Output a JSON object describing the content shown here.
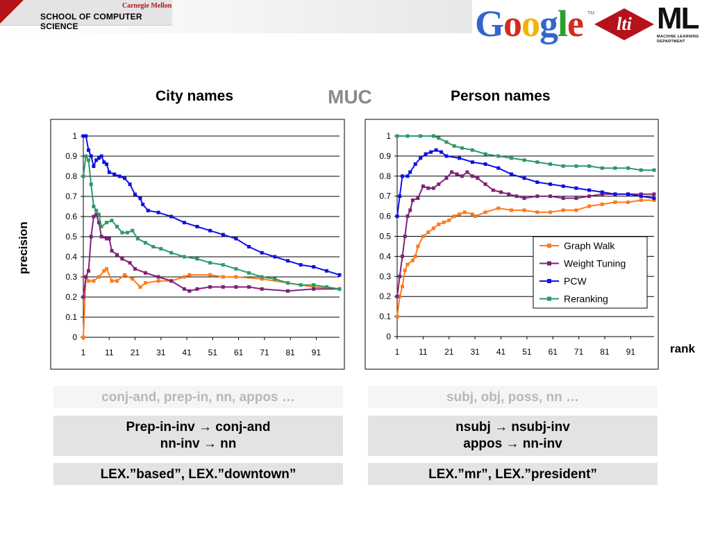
{
  "header": {
    "university": "Carnegie Mellon",
    "school": "SCHOOL OF COMPUTER SCIENCE",
    "google_logo": "Google",
    "google_tm": "TM",
    "lti_logo": "lti",
    "ml_logo": "ML",
    "ml_sub1": "MACHINE LEARNING",
    "ml_sub2": "DEPARTMENT"
  },
  "slide": {
    "center_title": "MUC",
    "y_axis_label": "precision",
    "x_axis_label": "rank"
  },
  "colors": {
    "graph_walk": "#ff7a1a",
    "weight_tuning": "#80207a",
    "pcw": "#1010e8",
    "reranking": "#2e9a68",
    "google_blue": "#3366cc",
    "google_red": "#d52b1e",
    "google_yellow": "#f3b400",
    "google_green": "#2ca02c",
    "cmu_red": "#b5121b"
  },
  "chart_data": [
    {
      "type": "line",
      "title": "City names",
      "xlabel": "rank",
      "ylabel": "precision",
      "xlim": [
        1,
        100
      ],
      "ylim": [
        0,
        1
      ],
      "x_ticks": [
        "1",
        "11",
        "21",
        "31",
        "41",
        "51",
        "61",
        "71",
        "81",
        "91"
      ],
      "y_ticks": [
        "0",
        "0.1",
        "0.2",
        "0.3",
        "0.4",
        "0.5",
        "0.6",
        "0.7",
        "0.8",
        "0.9",
        "1"
      ],
      "grid": true,
      "legend": "none",
      "series": [
        {
          "name": "Graph Walk",
          "points": [
            [
              1,
              0
            ],
            [
              2,
              0.3
            ],
            [
              3,
              0.28
            ],
            [
              5,
              0.28
            ],
            [
              7,
              0.3
            ],
            [
              9,
              0.33
            ],
            [
              10,
              0.34
            ],
            [
              12,
              0.28
            ],
            [
              14,
              0.28
            ],
            [
              17,
              0.31
            ],
            [
              20,
              0.29
            ],
            [
              23,
              0.25
            ],
            [
              25,
              0.27
            ],
            [
              30,
              0.28
            ],
            [
              35,
              0.28
            ],
            [
              40,
              0.3
            ],
            [
              42,
              0.31
            ],
            [
              50,
              0.31
            ],
            [
              55,
              0.3
            ],
            [
              60,
              0.3
            ],
            [
              70,
              0.29
            ],
            [
              80,
              0.27
            ],
            [
              90,
              0.25
            ],
            [
              100,
              0.24
            ]
          ]
        },
        {
          "name": "Weight Tuning",
          "points": [
            [
              1,
              0.2
            ],
            [
              2,
              0.3
            ],
            [
              3,
              0.33
            ],
            [
              4,
              0.5
            ],
            [
              5,
              0.6
            ],
            [
              6,
              0.61
            ],
            [
              7,
              0.57
            ],
            [
              8,
              0.5
            ],
            [
              10,
              0.49
            ],
            [
              11,
              0.49
            ],
            [
              12,
              0.43
            ],
            [
              14,
              0.41
            ],
            [
              16,
              0.39
            ],
            [
              19,
              0.37
            ],
            [
              21,
              0.34
            ],
            [
              25,
              0.32
            ],
            [
              30,
              0.3
            ],
            [
              35,
              0.28
            ],
            [
              40,
              0.24
            ],
            [
              42,
              0.23
            ],
            [
              45,
              0.24
            ],
            [
              50,
              0.25
            ],
            [
              55,
              0.25
            ],
            [
              60,
              0.25
            ],
            [
              65,
              0.25
            ],
            [
              70,
              0.24
            ],
            [
              80,
              0.23
            ],
            [
              90,
              0.24
            ],
            [
              100,
              0.24
            ]
          ]
        },
        {
          "name": "PCW",
          "points": [
            [
              1,
              1
            ],
            [
              2,
              1
            ],
            [
              3,
              0.93
            ],
            [
              4,
              0.9
            ],
            [
              5,
              0.85
            ],
            [
              6,
              0.88
            ],
            [
              7,
              0.89
            ],
            [
              8,
              0.9
            ],
            [
              9,
              0.87
            ],
            [
              10,
              0.86
            ],
            [
              11,
              0.82
            ],
            [
              13,
              0.81
            ],
            [
              15,
              0.8
            ],
            [
              17,
              0.79
            ],
            [
              19,
              0.76
            ],
            [
              21,
              0.71
            ],
            [
              23,
              0.69
            ],
            [
              24,
              0.66
            ],
            [
              26,
              0.63
            ],
            [
              30,
              0.62
            ],
            [
              35,
              0.6
            ],
            [
              40,
              0.57
            ],
            [
              45,
              0.55
            ],
            [
              50,
              0.53
            ],
            [
              55,
              0.51
            ],
            [
              60,
              0.49
            ],
            [
              65,
              0.45
            ],
            [
              70,
              0.42
            ],
            [
              75,
              0.4
            ],
            [
              80,
              0.38
            ],
            [
              85,
              0.36
            ],
            [
              90,
              0.35
            ],
            [
              95,
              0.33
            ],
            [
              100,
              0.31
            ]
          ]
        },
        {
          "name": "Reranking",
          "points": [
            [
              1,
              0.8
            ],
            [
              2,
              0.9
            ],
            [
              3,
              0.88
            ],
            [
              4,
              0.76
            ],
            [
              5,
              0.65
            ],
            [
              6,
              0.63
            ],
            [
              7,
              0.61
            ],
            [
              8,
              0.55
            ],
            [
              10,
              0.57
            ],
            [
              12,
              0.58
            ],
            [
              14,
              0.55
            ],
            [
              16,
              0.52
            ],
            [
              18,
              0.52
            ],
            [
              20,
              0.53
            ],
            [
              22,
              0.49
            ],
            [
              25,
              0.47
            ],
            [
              28,
              0.45
            ],
            [
              31,
              0.44
            ],
            [
              35,
              0.42
            ],
            [
              40,
              0.4
            ],
            [
              45,
              0.39
            ],
            [
              50,
              0.37
            ],
            [
              55,
              0.36
            ],
            [
              60,
              0.34
            ],
            [
              65,
              0.32
            ],
            [
              70,
              0.3
            ],
            [
              75,
              0.29
            ],
            [
              80,
              0.27
            ],
            [
              85,
              0.26
            ],
            [
              90,
              0.26
            ],
            [
              95,
              0.25
            ],
            [
              100,
              0.24
            ]
          ]
        }
      ]
    },
    {
      "type": "line",
      "title": "Person names",
      "xlabel": "rank",
      "ylabel": "precision",
      "xlim": [
        1,
        100
      ],
      "ylim": [
        0,
        1
      ],
      "x_ticks": [
        "1",
        "11",
        "21",
        "31",
        "41",
        "51",
        "61",
        "71",
        "81",
        "91"
      ],
      "y_ticks": [
        "0",
        "0.1",
        "0.2",
        "0.3",
        "0.4",
        "0.5",
        "0.6",
        "0.7",
        "0.8",
        "0.9",
        "1"
      ],
      "grid": true,
      "legend": "right",
      "series": [
        {
          "name": "Graph Walk",
          "points": [
            [
              1,
              0.1
            ],
            [
              2,
              0.2
            ],
            [
              3,
              0.25
            ],
            [
              4,
              0.33
            ],
            [
              5,
              0.36
            ],
            [
              7,
              0.38
            ],
            [
              8,
              0.4
            ],
            [
              9,
              0.45
            ],
            [
              11,
              0.5
            ],
            [
              13,
              0.52
            ],
            [
              15,
              0.54
            ],
            [
              17,
              0.56
            ],
            [
              19,
              0.57
            ],
            [
              21,
              0.58
            ],
            [
              23,
              0.6
            ],
            [
              25,
              0.61
            ],
            [
              27,
              0.62
            ],
            [
              30,
              0.61
            ],
            [
              31,
              0.6
            ],
            [
              35,
              0.62
            ],
            [
              40,
              0.64
            ],
            [
              45,
              0.63
            ],
            [
              50,
              0.63
            ],
            [
              55,
              0.62
            ],
            [
              60,
              0.62
            ],
            [
              65,
              0.63
            ],
            [
              70,
              0.63
            ],
            [
              75,
              0.65
            ],
            [
              80,
              0.66
            ],
            [
              85,
              0.67
            ],
            [
              90,
              0.67
            ],
            [
              95,
              0.68
            ],
            [
              100,
              0.68
            ]
          ]
        },
        {
          "name": "Weight Tuning",
          "points": [
            [
              1,
              0.2
            ],
            [
              2,
              0.3
            ],
            [
              3,
              0.4
            ],
            [
              4,
              0.5
            ],
            [
              5,
              0.6
            ],
            [
              6,
              0.63
            ],
            [
              7,
              0.68
            ],
            [
              9,
              0.69
            ],
            [
              11,
              0.75
            ],
            [
              13,
              0.74
            ],
            [
              15,
              0.74
            ],
            [
              17,
              0.76
            ],
            [
              20,
              0.79
            ],
            [
              22,
              0.82
            ],
            [
              24,
              0.81
            ],
            [
              26,
              0.8
            ],
            [
              28,
              0.82
            ],
            [
              30,
              0.8
            ],
            [
              32,
              0.79
            ],
            [
              35,
              0.76
            ],
            [
              38,
              0.73
            ],
            [
              41,
              0.72
            ],
            [
              44,
              0.71
            ],
            [
              47,
              0.7
            ],
            [
              50,
              0.69
            ],
            [
              55,
              0.7
            ],
            [
              60,
              0.7
            ],
            [
              65,
              0.69
            ],
            [
              70,
              0.69
            ],
            [
              75,
              0.7
            ],
            [
              80,
              0.71
            ],
            [
              85,
              0.71
            ],
            [
              90,
              0.71
            ],
            [
              95,
              0.71
            ],
            [
              100,
              0.71
            ]
          ]
        },
        {
          "name": "PCW",
          "points": [
            [
              1,
              0.6
            ],
            [
              2,
              0.7
            ],
            [
              3,
              0.8
            ],
            [
              5,
              0.8
            ],
            [
              6,
              0.82
            ],
            [
              8,
              0.86
            ],
            [
              10,
              0.89
            ],
            [
              12,
              0.91
            ],
            [
              14,
              0.92
            ],
            [
              16,
              0.93
            ],
            [
              18,
              0.92
            ],
            [
              20,
              0.9
            ],
            [
              25,
              0.89
            ],
            [
              30,
              0.87
            ],
            [
              35,
              0.86
            ],
            [
              40,
              0.84
            ],
            [
              45,
              0.81
            ],
            [
              50,
              0.79
            ],
            [
              55,
              0.77
            ],
            [
              60,
              0.76
            ],
            [
              65,
              0.75
            ],
            [
              70,
              0.74
            ],
            [
              75,
              0.73
            ],
            [
              80,
              0.72
            ],
            [
              85,
              0.71
            ],
            [
              90,
              0.71
            ],
            [
              95,
              0.7
            ],
            [
              100,
              0.69
            ]
          ]
        },
        {
          "name": "Reranking",
          "points": [
            [
              1,
              1
            ],
            [
              5,
              1
            ],
            [
              10,
              1
            ],
            [
              15,
              1
            ],
            [
              17,
              0.99
            ],
            [
              20,
              0.97
            ],
            [
              23,
              0.95
            ],
            [
              26,
              0.94
            ],
            [
              30,
              0.93
            ],
            [
              35,
              0.91
            ],
            [
              40,
              0.9
            ],
            [
              45,
              0.89
            ],
            [
              50,
              0.88
            ],
            [
              55,
              0.87
            ],
            [
              60,
              0.86
            ],
            [
              65,
              0.85
            ],
            [
              70,
              0.85
            ],
            [
              75,
              0.85
            ],
            [
              80,
              0.84
            ],
            [
              85,
              0.84
            ],
            [
              90,
              0.84
            ],
            [
              95,
              0.83
            ],
            [
              100,
              0.83
            ]
          ]
        }
      ]
    }
  ],
  "feature_boxes": {
    "city": {
      "features": "conj-and, prep-in, nn, appos …",
      "rule1": "Prep-in-inv → conj-and",
      "rule2": "nn-inv → nn",
      "lex": "LEX.”based”, LEX.”downtown”"
    },
    "person": {
      "features": "subj, obj, poss, nn …",
      "rule1": "nsubj → nsubj-inv",
      "rule2": "appos → nn-inv",
      "lex": "LEX.”mr”, LEX.”president”"
    }
  }
}
